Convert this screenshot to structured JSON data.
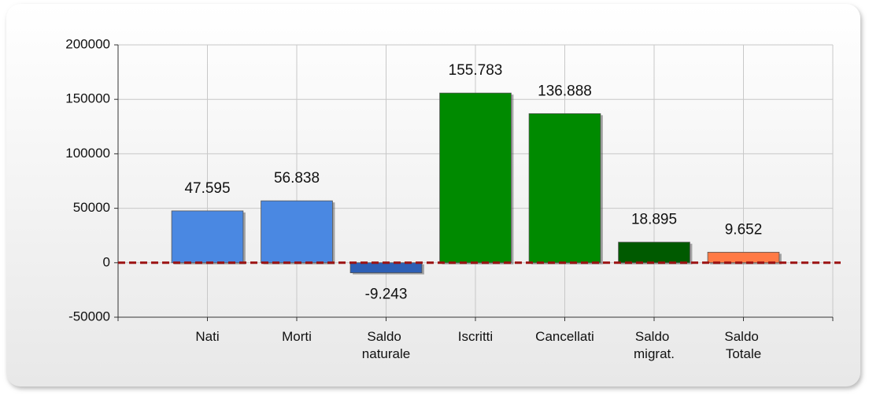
{
  "chart_data": {
    "type": "bar",
    "categories": [
      "Nati",
      "Morti",
      "Saldo naturale",
      "Iscritti",
      "Cancellati",
      "Saldo migrat.",
      "Saldo Totale"
    ],
    "values": [
      47595,
      56838,
      -9243,
      155783,
      136888,
      18895,
      9652
    ],
    "value_labels": [
      "47.595",
      "56.838",
      "-9.243",
      "155.783",
      "136.888",
      "18.895",
      "9.652"
    ],
    "colors": [
      "#4a88e2",
      "#4a88e2",
      "#2d5fb5",
      "#008a00",
      "#008a00",
      "#005a00",
      "#ff7a45"
    ],
    "ylim": [
      -50000,
      200000
    ],
    "yticks": [
      -50000,
      0,
      50000,
      100000,
      150000,
      200000
    ],
    "grid": true
  }
}
